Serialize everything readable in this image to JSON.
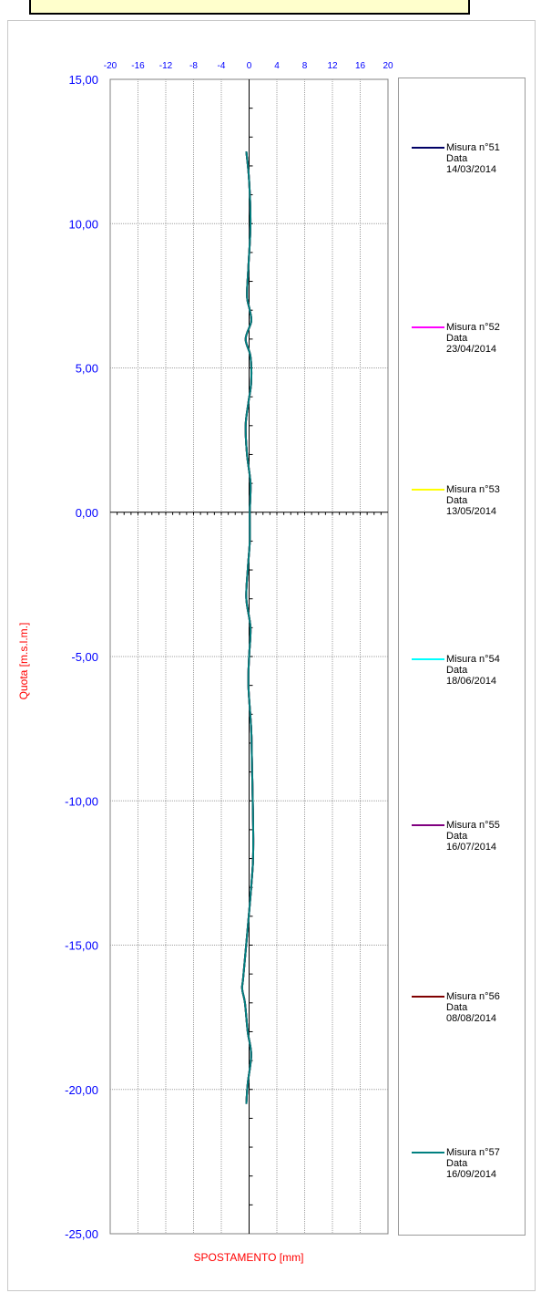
{
  "chart_data": {
    "type": "line",
    "title": "",
    "xlabel": "SPOSTAMENTO [mm]",
    "ylabel": "Quota [m.s.l.m.]",
    "xlim": [
      -20,
      20
    ],
    "ylim": [
      -25,
      15
    ],
    "x_ticks": [
      "-20",
      "-16",
      "-12",
      "-8",
      "-4",
      "0",
      "4",
      "8",
      "12",
      "16",
      "20"
    ],
    "y_ticks": [
      "15,00",
      "10,00",
      "5,00",
      "0,00",
      "-5,00",
      "-10,00",
      "-15,00",
      "-20,00",
      "-25,00"
    ],
    "grid": true,
    "legend_position": "right",
    "series": [
      {
        "name": "Misura n°51",
        "date_label": "Data",
        "date": "14/03/2014",
        "color": "#000066",
        "x": [
          -0.4,
          0.0,
          0.2,
          -0.1,
          -0.3,
          0.1,
          0.3,
          -0.5,
          0.2,
          0.3,
          -0.1,
          -0.5,
          -0.3,
          0.2,
          0.1,
          0.1,
          -0.2,
          -0.4,
          0.2,
          0.0,
          -0.1,
          0.3,
          0.4,
          0.6,
          0.3,
          -0.8,
          -1.0,
          -0.6,
          -0.2,
          0.3,
          -0.2,
          -0.4
        ],
        "y": [
          12.5,
          11.5,
          10.0,
          8.5,
          7.5,
          7.0,
          6.6,
          6.0,
          5.4,
          4.5,
          3.8,
          3.0,
          2.0,
          1.0,
          0.0,
          -1.0,
          -2.0,
          -3.0,
          -4.0,
          -5.0,
          -6.0,
          -7.5,
          -8.5,
          -11.5,
          -13.0,
          -16.0,
          -16.5,
          -17.0,
          -18.0,
          -18.8,
          -19.8,
          -20.5
        ]
      },
      {
        "name": "Misura n°52",
        "date_label": "Data",
        "date": "23/04/2014",
        "color": "#ff00ff",
        "x": [
          -0.4,
          0.0,
          0.2,
          -0.1,
          -0.3,
          0.1,
          0.3,
          -0.5,
          0.2,
          0.3,
          -0.1,
          -0.5,
          -0.3,
          0.2,
          0.1,
          0.1,
          -0.2,
          -0.4,
          0.2,
          0.0,
          -0.1,
          0.3,
          0.4,
          0.6,
          0.3,
          -0.8,
          -1.0,
          -0.6,
          -0.2,
          0.3,
          -0.2,
          -0.4
        ],
        "y": [
          12.5,
          11.5,
          10.0,
          8.5,
          7.5,
          7.0,
          6.6,
          6.0,
          5.4,
          4.5,
          3.8,
          3.0,
          2.0,
          1.0,
          0.0,
          -1.0,
          -2.0,
          -3.0,
          -4.0,
          -5.0,
          -6.0,
          -7.5,
          -8.5,
          -11.5,
          -13.0,
          -16.0,
          -16.5,
          -17.0,
          -18.0,
          -18.8,
          -19.8,
          -20.5
        ]
      },
      {
        "name": "Misura n°53",
        "date_label": "Data",
        "date": "13/05/2014",
        "color": "#ffff00",
        "x": [
          -0.4,
          0.0,
          0.2,
          -0.1,
          -0.3,
          0.1,
          0.3,
          -0.5,
          0.2,
          0.3,
          -0.1,
          -0.5,
          -0.3,
          0.2,
          0.1,
          0.1,
          -0.2,
          -0.4,
          0.2,
          0.0,
          -0.1,
          0.3,
          0.4,
          0.6,
          0.3,
          -0.8,
          -1.0,
          -0.6,
          -0.2,
          0.3,
          -0.2,
          -0.4
        ],
        "y": [
          12.5,
          11.5,
          10.0,
          8.5,
          7.5,
          7.0,
          6.6,
          6.0,
          5.4,
          4.5,
          3.8,
          3.0,
          2.0,
          1.0,
          0.0,
          -1.0,
          -2.0,
          -3.0,
          -4.0,
          -5.0,
          -6.0,
          -7.5,
          -8.5,
          -11.5,
          -13.0,
          -16.0,
          -16.5,
          -17.0,
          -18.0,
          -18.8,
          -19.8,
          -20.5
        ]
      },
      {
        "name": "Misura n°54",
        "date_label": "Data",
        "date": "18/06/2014",
        "color": "#00ffff",
        "x": [
          -0.4,
          0.0,
          0.2,
          -0.1,
          -0.3,
          0.1,
          0.3,
          -0.5,
          0.2,
          0.3,
          -0.1,
          -0.5,
          -0.3,
          0.2,
          0.1,
          0.1,
          -0.2,
          -0.4,
          0.2,
          0.0,
          -0.1,
          0.3,
          0.4,
          0.6,
          0.3,
          -0.8,
          -1.0,
          -0.6,
          -0.2,
          0.3,
          -0.2,
          -0.4
        ],
        "y": [
          12.5,
          11.5,
          10.0,
          8.5,
          7.5,
          7.0,
          6.6,
          6.0,
          5.4,
          4.5,
          3.8,
          3.0,
          2.0,
          1.0,
          0.0,
          -1.0,
          -2.0,
          -3.0,
          -4.0,
          -5.0,
          -6.0,
          -7.5,
          -8.5,
          -11.5,
          -13.0,
          -16.0,
          -16.5,
          -17.0,
          -18.0,
          -18.8,
          -19.8,
          -20.5
        ]
      },
      {
        "name": "Misura n°55",
        "date_label": "Data",
        "date": "16/07/2014",
        "color": "#800080",
        "x": [
          -0.4,
          0.0,
          0.2,
          -0.1,
          -0.3,
          0.1,
          0.3,
          -0.5,
          0.2,
          0.3,
          -0.1,
          -0.5,
          -0.3,
          0.2,
          0.1,
          0.1,
          -0.2,
          -0.4,
          0.2,
          0.0,
          -0.1,
          0.3,
          0.4,
          0.6,
          0.3,
          -0.8,
          -1.0,
          -0.6,
          -0.2,
          0.3,
          -0.2,
          -0.4
        ],
        "y": [
          12.5,
          11.5,
          10.0,
          8.5,
          7.5,
          7.0,
          6.6,
          6.0,
          5.4,
          4.5,
          3.8,
          3.0,
          2.0,
          1.0,
          0.0,
          -1.0,
          -2.0,
          -3.0,
          -4.0,
          -5.0,
          -6.0,
          -7.5,
          -8.5,
          -11.5,
          -13.0,
          -16.0,
          -16.5,
          -17.0,
          -18.0,
          -18.8,
          -19.8,
          -20.5
        ]
      },
      {
        "name": "Misura n°56",
        "date_label": "Data",
        "date": "08/08/2014",
        "color": "#800000",
        "x": [
          -0.4,
          0.0,
          0.2,
          -0.1,
          -0.3,
          0.1,
          0.3,
          -0.5,
          0.2,
          0.3,
          -0.1,
          -0.5,
          -0.3,
          0.2,
          0.1,
          0.1,
          -0.2,
          -0.4,
          0.2,
          0.0,
          -0.1,
          0.3,
          0.4,
          0.6,
          0.3,
          -0.8,
          -1.0,
          -0.6,
          -0.2,
          0.3,
          -0.2,
          -0.4
        ],
        "y": [
          12.5,
          11.5,
          10.0,
          8.5,
          7.5,
          7.0,
          6.6,
          6.0,
          5.4,
          4.5,
          3.8,
          3.0,
          2.0,
          1.0,
          0.0,
          -1.0,
          -2.0,
          -3.0,
          -4.0,
          -5.0,
          -6.0,
          -7.5,
          -8.5,
          -11.5,
          -13.0,
          -16.0,
          -16.5,
          -17.0,
          -18.0,
          -18.8,
          -19.8,
          -20.5
        ]
      },
      {
        "name": "Misura n°57",
        "date_label": "Data",
        "date": "16/09/2014",
        "color": "#008080",
        "x": [
          -0.4,
          0.0,
          0.2,
          -0.1,
          -0.3,
          0.1,
          0.3,
          -0.5,
          0.2,
          0.3,
          -0.1,
          -0.5,
          -0.3,
          0.2,
          0.1,
          0.1,
          -0.2,
          -0.4,
          0.2,
          0.0,
          -0.1,
          0.3,
          0.4,
          0.6,
          0.3,
          -0.8,
          -1.0,
          -0.6,
          -0.2,
          0.3,
          -0.2,
          -0.4
        ],
        "y": [
          12.5,
          11.5,
          10.0,
          8.5,
          7.5,
          7.0,
          6.6,
          6.0,
          5.4,
          4.5,
          3.8,
          3.0,
          2.0,
          1.0,
          0.0,
          -1.0,
          -2.0,
          -3.0,
          -4.0,
          -5.0,
          -6.0,
          -7.5,
          -8.5,
          -11.5,
          -13.0,
          -16.0,
          -16.5,
          -17.0,
          -18.0,
          -18.8,
          -19.8,
          -20.5
        ]
      }
    ]
  }
}
